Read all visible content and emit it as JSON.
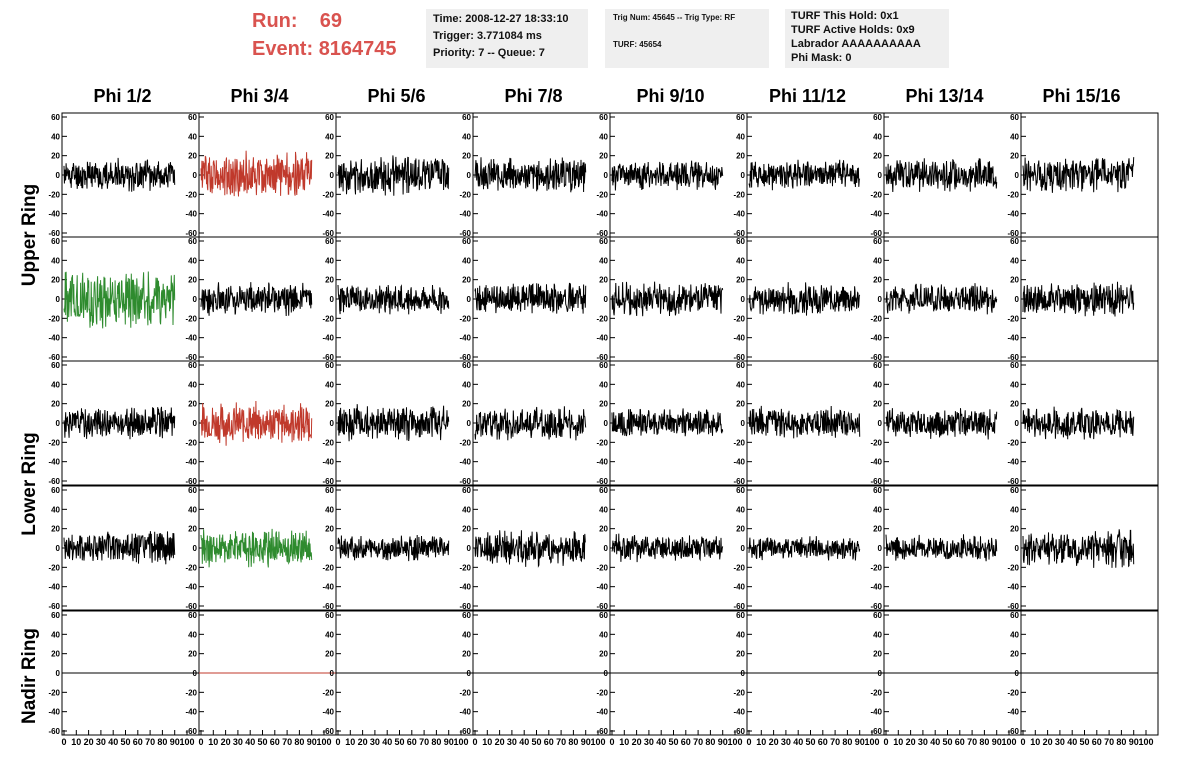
{
  "header": {
    "run_label": "Run:",
    "run_value": "69",
    "event_label": "Event:",
    "event_value": "8164745",
    "info_time": "Time: 2008-12-27 18:33:10",
    "info_trigger": "Trigger: 3.771084 ms",
    "info_priority": "Priority: 7 -- Queue: 7",
    "trig_num": "Trig Num: 45645 -- Trig Type: RF",
    "turf": "TURF: 45654",
    "turf_this_hold": "TURF This Hold: 0x1",
    "turf_active_holds": "TURF Active Holds: 0x9",
    "labrador": "Labrador AAAAAAAAAA",
    "phi_mask": "Phi Mask: 0"
  },
  "columns": [
    "Phi 1/2",
    "Phi 3/4",
    "Phi 5/6",
    "Phi 7/8",
    "Phi 9/10",
    "Phi 11/12",
    "Phi 13/14",
    "Phi 15/16"
  ],
  "ring_labels": [
    "Upper Ring",
    "Lower Ring",
    "Nadir Ring"
  ],
  "colors": {
    "normal": "#000000",
    "red": "#c0392b",
    "green": "#2e8b2e"
  },
  "chart_data": {
    "type": "line",
    "description_of_layout": "",
    "ylim": [
      -60,
      60
    ],
    "yticks": [
      60,
      40,
      20,
      0,
      -20,
      -40,
      -60
    ],
    "xlim": [
      0,
      100
    ],
    "xticks": [
      0,
      10,
      20,
      30,
      40,
      50,
      60,
      70,
      80,
      90,
      100
    ],
    "rows": [
      {
        "ring": "Upper Ring",
        "panels": [
          {
            "color": "normal",
            "amp": 15,
            "seed": 11
          },
          {
            "color": "red",
            "amp": 22,
            "seed": 12
          },
          {
            "color": "normal",
            "amp": 18,
            "seed": 13
          },
          {
            "color": "normal",
            "amp": 16,
            "seed": 14
          },
          {
            "color": "normal",
            "amp": 14,
            "seed": 15
          },
          {
            "color": "normal",
            "amp": 14,
            "seed": 16
          },
          {
            "color": "normal",
            "amp": 16,
            "seed": 17
          },
          {
            "color": "normal",
            "amp": 17,
            "seed": 18
          }
        ]
      },
      {
        "ring": "Upper Ring",
        "panels": [
          {
            "color": "green",
            "amp": 28,
            "seed": 21
          },
          {
            "color": "normal",
            "amp": 16,
            "seed": 22
          },
          {
            "color": "normal",
            "amp": 15,
            "seed": 23
          },
          {
            "color": "normal",
            "amp": 15,
            "seed": 24
          },
          {
            "color": "normal",
            "amp": 16,
            "seed": 25
          },
          {
            "color": "normal",
            "amp": 15,
            "seed": 26
          },
          {
            "color": "normal",
            "amp": 14,
            "seed": 27
          },
          {
            "color": "normal",
            "amp": 16,
            "seed": 28
          }
        ]
      },
      {
        "ring": "Lower Ring",
        "panels": [
          {
            "color": "normal",
            "amp": 15,
            "seed": 31
          },
          {
            "color": "red",
            "amp": 20,
            "seed": 32
          },
          {
            "color": "normal",
            "amp": 17,
            "seed": 33
          },
          {
            "color": "normal",
            "amp": 16,
            "seed": 34
          },
          {
            "color": "normal",
            "amp": 14,
            "seed": 35
          },
          {
            "color": "normal",
            "amp": 15,
            "seed": 36
          },
          {
            "color": "normal",
            "amp": 15,
            "seed": 37
          },
          {
            "color": "normal",
            "amp": 15,
            "seed": 38
          }
        ]
      },
      {
        "ring": "Lower Ring",
        "panels": [
          {
            "color": "normal",
            "amp": 16,
            "seed": 41
          },
          {
            "color": "green",
            "amp": 18,
            "seed": 42
          },
          {
            "color": "normal",
            "amp": 12,
            "seed": 43
          },
          {
            "color": "normal",
            "amp": 17,
            "seed": 44
          },
          {
            "color": "normal",
            "amp": 13,
            "seed": 45
          },
          {
            "color": "normal",
            "amp": 11,
            "seed": 46
          },
          {
            "color": "normal",
            "amp": 12,
            "seed": 47
          },
          {
            "color": "normal",
            "amp": 18,
            "seed": 48
          }
        ]
      },
      {
        "ring": "Nadir Ring",
        "panels": [
          {
            "color": "normal",
            "amp": 0,
            "seed": 51
          },
          {
            "color": "red",
            "amp": 0,
            "seed": 52
          },
          {
            "color": "normal",
            "amp": 0,
            "seed": 53
          },
          {
            "color": "normal",
            "amp": 0,
            "seed": 54
          },
          {
            "color": "normal",
            "amp": 0,
            "seed": 55
          },
          {
            "color": "normal",
            "amp": 0,
            "seed": 56
          },
          {
            "color": "normal",
            "amp": 0,
            "seed": 57
          },
          {
            "color": "normal",
            "amp": 0,
            "seed": 58
          }
        ]
      }
    ]
  }
}
